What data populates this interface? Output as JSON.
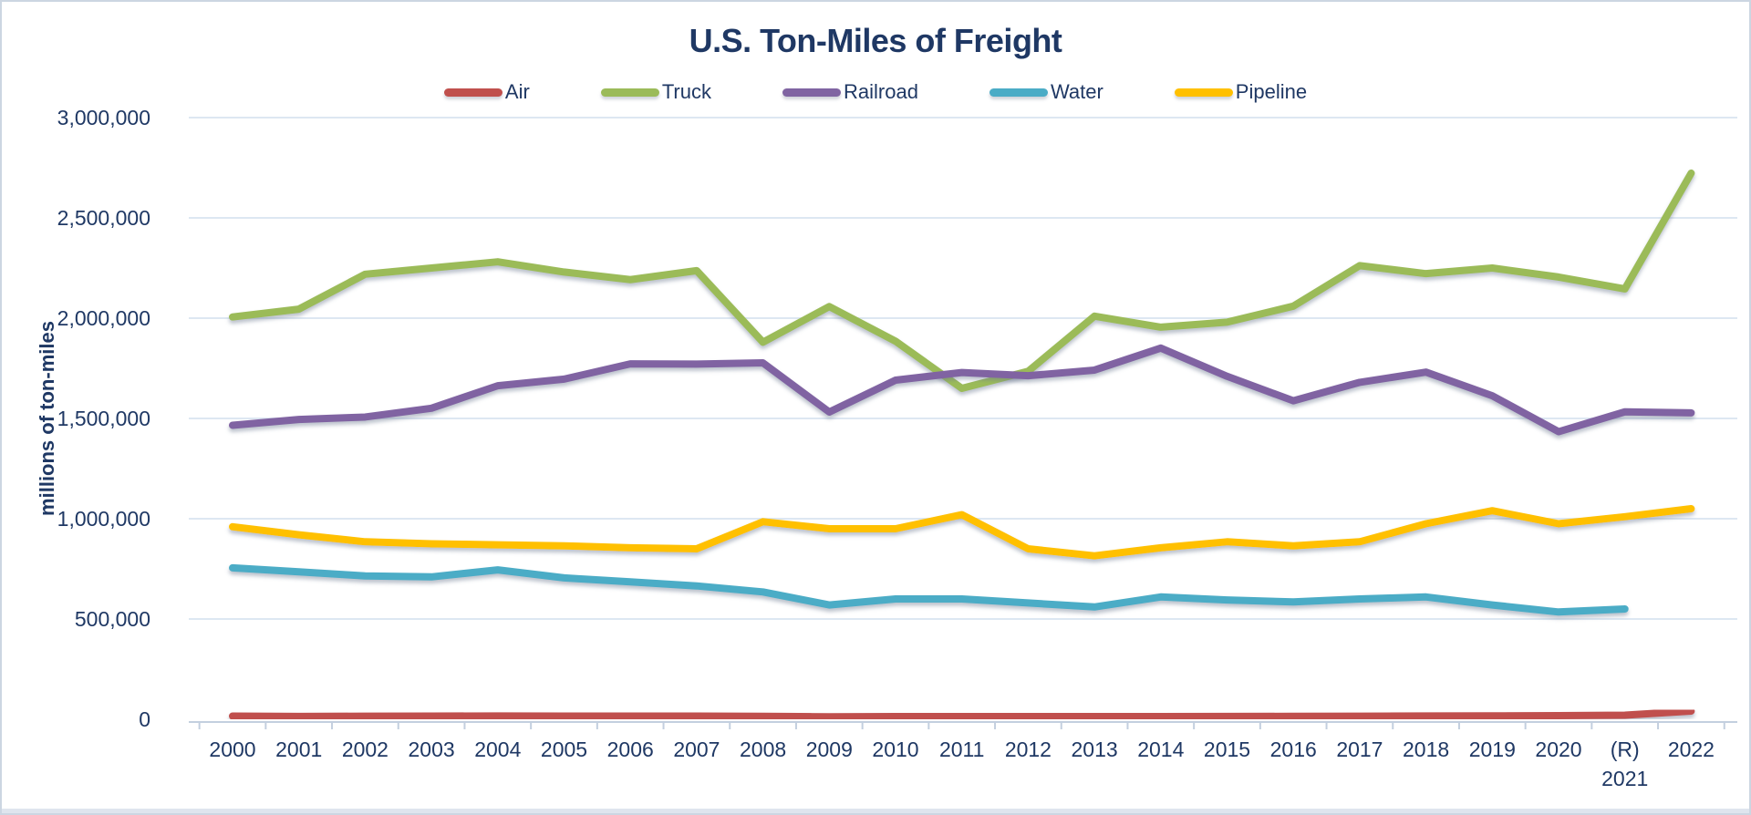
{
  "chart_data": {
    "type": "line",
    "title": "U.S. Ton-Miles of Freight",
    "ylabel": "millions of ton-miles",
    "xlabel": "",
    "ylim": [
      0,
      3000000
    ],
    "ytick_step": 500000,
    "grid": true,
    "legend_position": "top",
    "text_color": "#1F3864",
    "gridline_color": "#dde7f2",
    "axis_color": "#c3cfdf",
    "categories": [
      "2000",
      "2001",
      "2002",
      "2003",
      "2004",
      "2005",
      "2006",
      "2007",
      "2008",
      "2009",
      "2010",
      "2011",
      "2012",
      "2013",
      "2014",
      "2015",
      "2016",
      "2017",
      "2018",
      "2019",
      "2020",
      "(R) 2021",
      "2022"
    ],
    "series": [
      {
        "name": "Air",
        "color": "#C0504D",
        "values": [
          15800,
          14000,
          15300,
          15800,
          16500,
          16100,
          16000,
          15900,
          14500,
          12500,
          13600,
          13800,
          13500,
          13400,
          13900,
          14100,
          14600,
          15400,
          16200,
          16800,
          18000,
          20500,
          41000
        ]
      },
      {
        "name": "Truck",
        "color": "#9BBB59",
        "values": [
          2006000,
          2045000,
          2219000,
          2250000,
          2281000,
          2230000,
          2192000,
          2237000,
          1880000,
          2058000,
          1885000,
          1650000,
          1735000,
          2010000,
          1955000,
          1980000,
          2060000,
          2262000,
          2222000,
          2250000,
          2205000,
          2146000,
          2723000
        ]
      },
      {
        "name": "Railroad",
        "color": "#8064A2",
        "values": [
          1466000,
          1495000,
          1507000,
          1551000,
          1663000,
          1696000,
          1772000,
          1771000,
          1777000,
          1532000,
          1691000,
          1729000,
          1713000,
          1741000,
          1851000,
          1710000,
          1588000,
          1680000,
          1731000,
          1613000,
          1434000,
          1533000,
          1528000
        ]
      },
      {
        "name": "Water",
        "color": "#4BACC6",
        "values": [
          755000,
          735000,
          715000,
          710000,
          745000,
          705000,
          685000,
          665000,
          635000,
          570000,
          600000,
          600000,
          580000,
          560000,
          610000,
          595000,
          585000,
          600000,
          610000,
          570000,
          535000,
          550000,
          null
        ]
      },
      {
        "name": "Pipeline",
        "color": "#FFC000",
        "values": [
          960000,
          920000,
          885000,
          875000,
          870000,
          865000,
          855000,
          850000,
          985000,
          950000,
          950000,
          1020000,
          850000,
          815000,
          855000,
          885000,
          865000,
          885000,
          975000,
          1040000,
          975000,
          1010000,
          1050000
        ]
      }
    ]
  }
}
